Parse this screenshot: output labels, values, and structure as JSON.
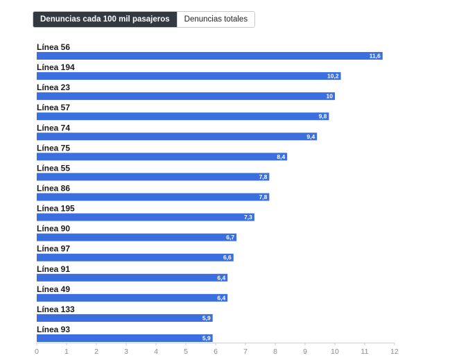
{
  "controls": {
    "options": [
      {
        "label": "Denuncias cada 100 mil pasajeros",
        "active": true
      },
      {
        "label": "Denuncias totales",
        "active": false
      }
    ]
  },
  "colors": {
    "bar": "#3b6fe0",
    "axis": "#cfcfcf"
  },
  "chart_data": {
    "type": "bar",
    "orientation": "horizontal",
    "categories": [
      "Línea 56",
      "Línea 194",
      "Línea 23",
      "Línea 57",
      "Línea 74",
      "Línea 75",
      "Línea 55",
      "Línea 86",
      "Línea 195",
      "Línea 90",
      "Línea 97",
      "Línea 91",
      "Línea 49",
      "Línea 133",
      "Línea 93"
    ],
    "values": [
      11.6,
      10.2,
      10,
      9.8,
      9.4,
      8.4,
      7.8,
      7.8,
      7.3,
      6.7,
      6.6,
      6.4,
      6.4,
      5.9,
      5.9
    ],
    "value_labels": [
      "11,6",
      "10,2",
      "10",
      "9,8",
      "9,4",
      "8,4",
      "7,8",
      "7,8",
      "7,3",
      "6,7",
      "6,6",
      "6,4",
      "6,4",
      "5,9",
      "5,9"
    ],
    "xlim": [
      0,
      12
    ],
    "xticks": [
      0,
      1,
      2,
      3,
      4,
      5,
      6,
      7,
      8,
      9,
      10,
      11,
      12
    ],
    "grid": false
  }
}
